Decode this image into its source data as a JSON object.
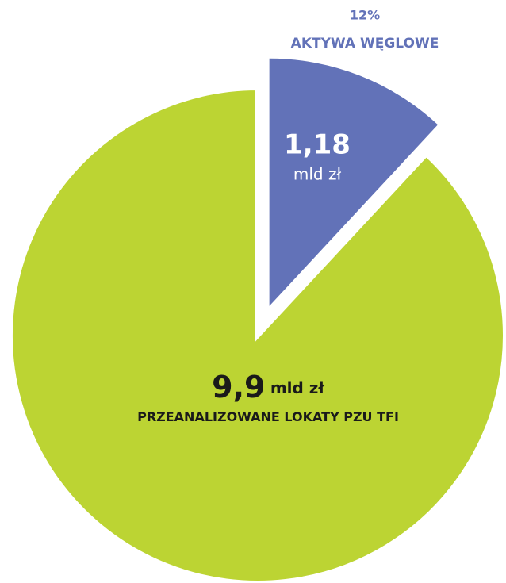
{
  "chart_data": {
    "type": "pie",
    "categories": [
      "AKTYWA WĘGLOWE",
      "PRZEANALIZOWANE LOKATY PZU TFI"
    ],
    "values": [
      1.18,
      9.9
    ],
    "value_labels": [
      "1,18",
      "9,9"
    ],
    "unit": "mld zł",
    "share": 12,
    "share_label": "12%",
    "colors": [
      "#6272b8",
      "#bcd433"
    ]
  }
}
